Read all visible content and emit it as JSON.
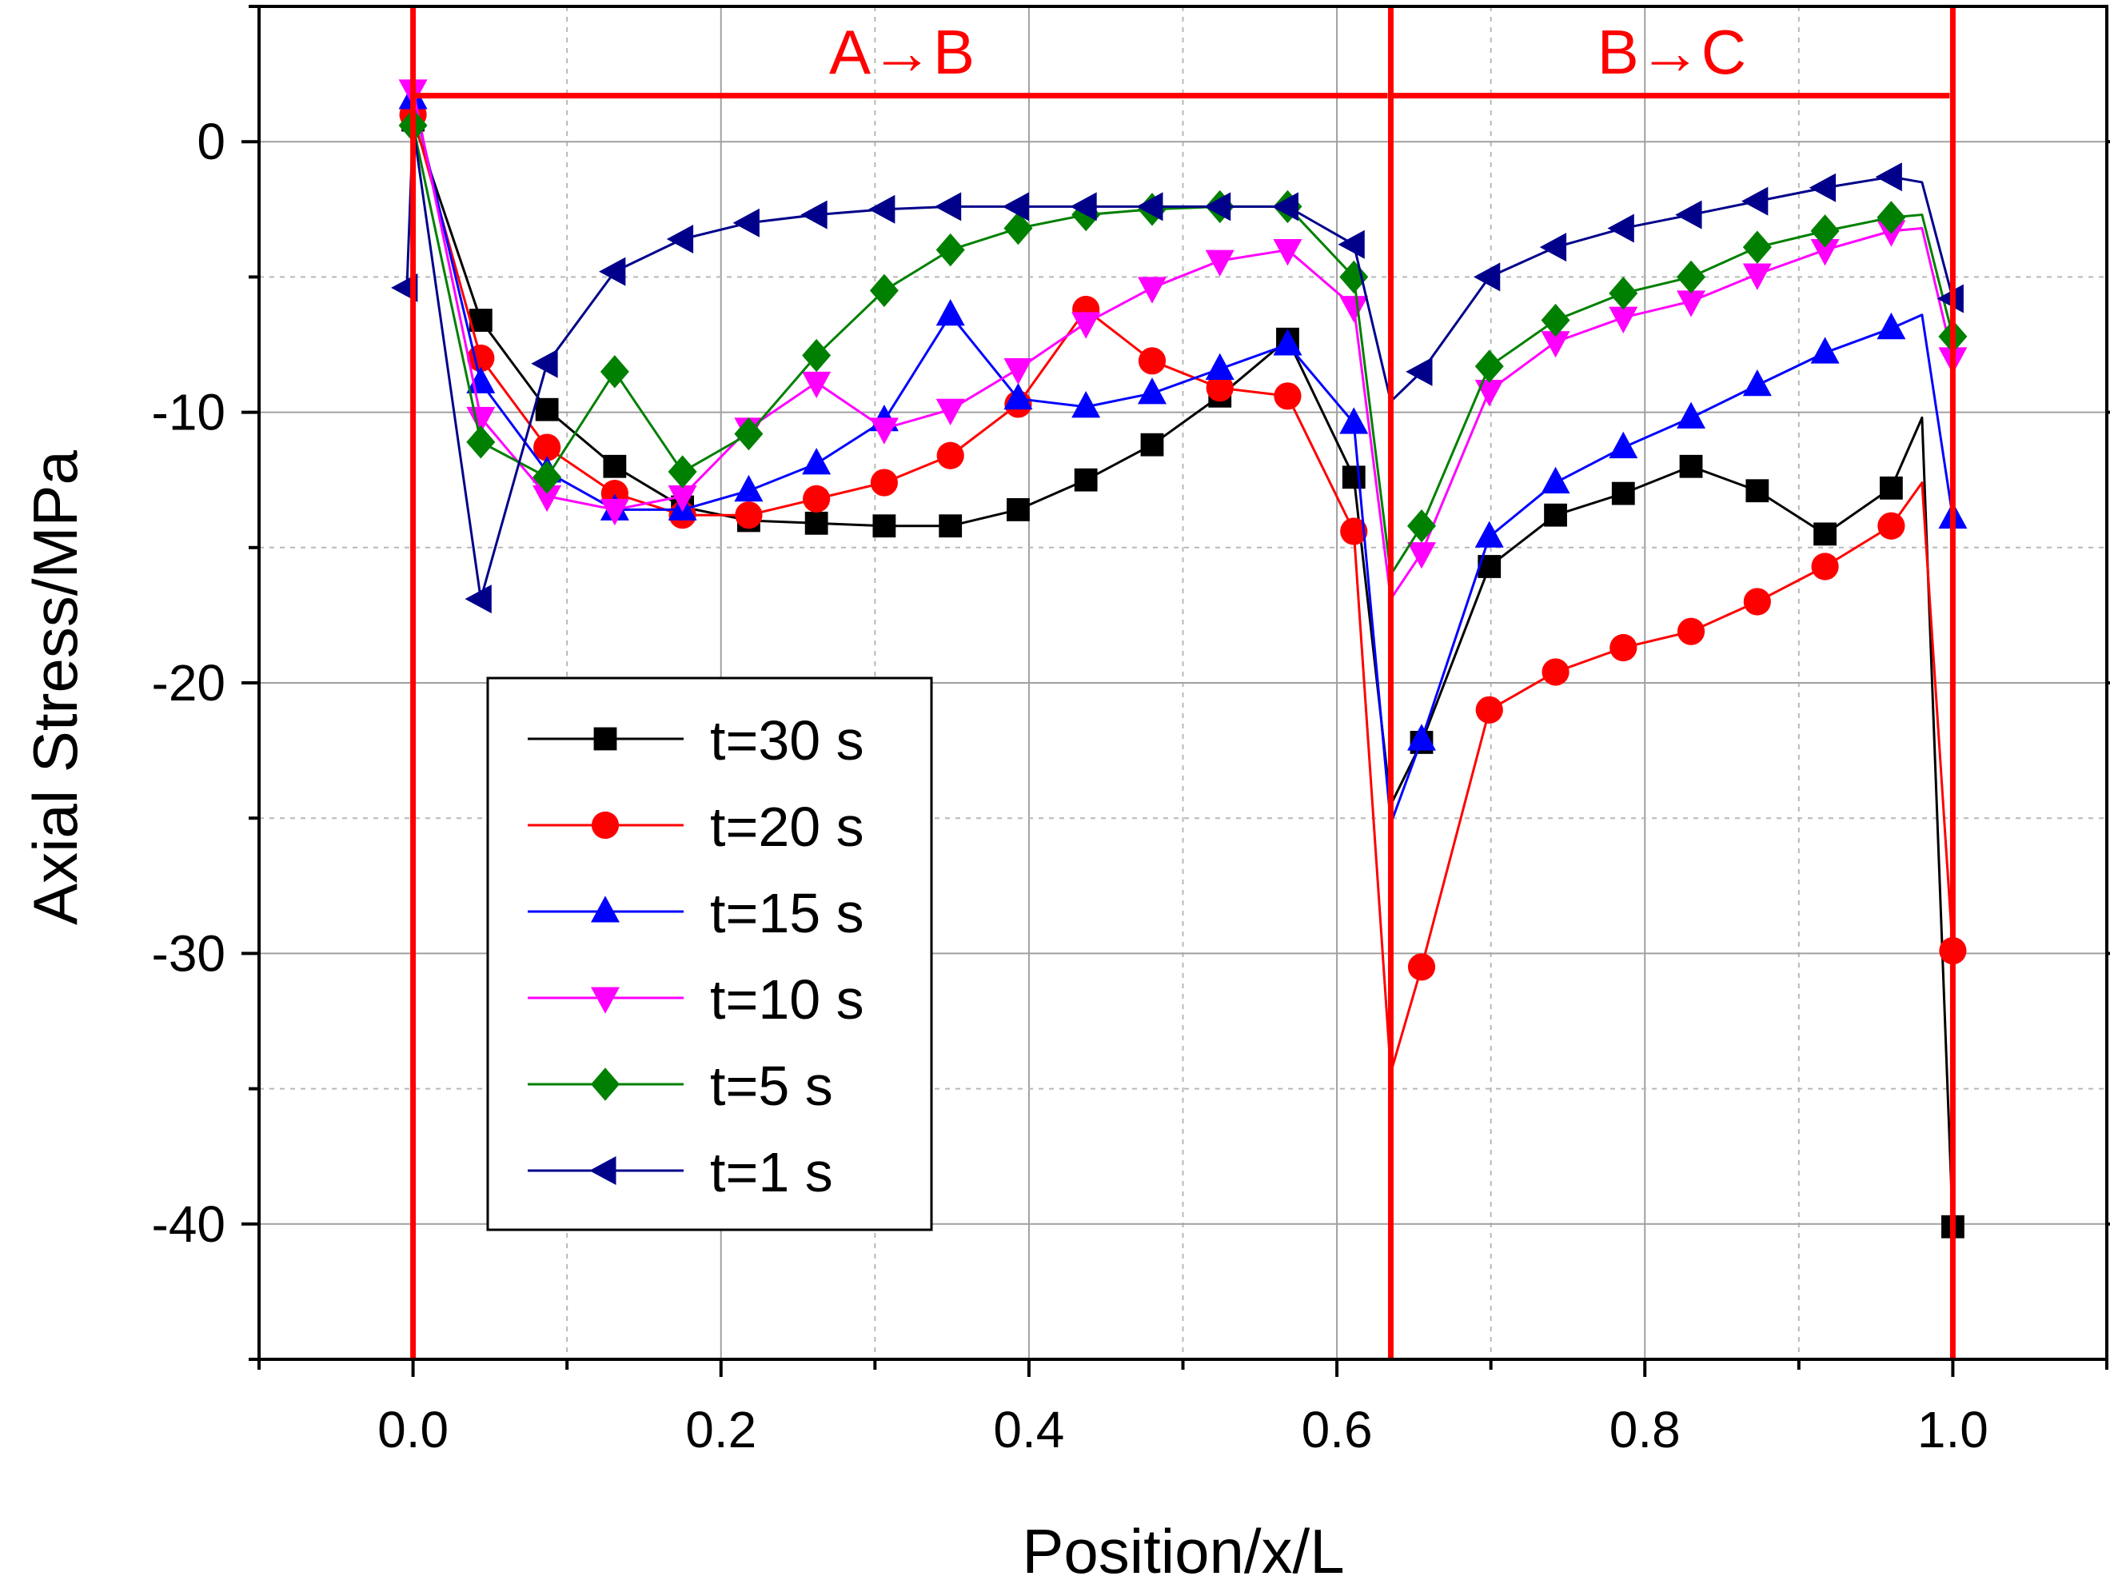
{
  "chart_data": {
    "type": "line",
    "xlabel": "Position/x/L",
    "ylabel": "Axial Stress/MPa",
    "xlim": [
      -0.1,
      1.1
    ],
    "ylim": [
      -45,
      5
    ],
    "xticks": [
      0.0,
      0.2,
      0.4,
      0.6,
      0.8,
      1.0
    ],
    "xtick_labels": [
      "0.0",
      "0.2",
      "0.4",
      "0.6",
      "0.8",
      "1.0"
    ],
    "yticks": [
      0,
      -10,
      -20,
      -30,
      -40
    ],
    "ytick_labels": [
      "0",
      "-10",
      "-20",
      "-30",
      "-40"
    ],
    "grid": true,
    "legend_position": "lower-left",
    "annotations": {
      "region_lines_x": [
        0.0,
        0.635,
        1.0
      ],
      "arrows": [
        {
          "label": "A→B",
          "x_start": 0.0,
          "x_end": 0.635,
          "y": 1.7
        },
        {
          "label": "B→C",
          "x_start": 0.635,
          "x_end": 1.0,
          "y": 1.7
        }
      ],
      "color": "#ff0000"
    },
    "series": [
      {
        "name": "t=30 s",
        "color": "#000000",
        "marker": "square",
        "line_x": [
          0.0,
          0.044,
          0.087,
          0.131,
          0.175,
          0.218,
          0.262,
          0.306,
          0.349,
          0.393,
          0.437,
          0.48,
          0.524,
          0.568,
          0.611,
          0.635,
          0.655,
          0.699,
          0.742,
          0.786,
          0.83,
          0.873,
          0.917,
          0.96,
          0.98,
          1.0
        ],
        "line_y": [
          0.8,
          -6.6,
          -9.9,
          -12.0,
          -13.5,
          -14.0,
          -14.1,
          -14.2,
          -14.2,
          -13.6,
          -12.5,
          -11.2,
          -9.4,
          -7.3,
          -12.4,
          -24.5,
          -22.2,
          -15.7,
          -13.8,
          -13.0,
          -12.0,
          -12.9,
          -14.5,
          -12.8,
          -10.2,
          -40.1
        ],
        "marker_x": [
          0.0,
          0.044,
          0.087,
          0.131,
          0.175,
          0.218,
          0.262,
          0.306,
          0.349,
          0.393,
          0.437,
          0.48,
          0.524,
          0.568,
          0.611,
          0.655,
          0.699,
          0.742,
          0.786,
          0.83,
          0.873,
          0.917,
          0.96,
          1.0
        ],
        "marker_y": [
          0.8,
          -6.6,
          -9.9,
          -12.0,
          -13.5,
          -14.0,
          -14.1,
          -14.2,
          -14.2,
          -13.6,
          -12.5,
          -11.2,
          -9.4,
          -7.3,
          -12.4,
          -22.2,
          -15.7,
          -13.8,
          -13.0,
          -12.0,
          -12.9,
          -14.5,
          -12.8,
          -40.1
        ]
      },
      {
        "name": "t=20 s",
        "color": "#ff0000",
        "marker": "circle",
        "line_x": [
          0.0,
          0.044,
          0.087,
          0.131,
          0.175,
          0.218,
          0.262,
          0.306,
          0.349,
          0.393,
          0.437,
          0.48,
          0.524,
          0.568,
          0.611,
          0.635,
          0.655,
          0.699,
          0.742,
          0.786,
          0.83,
          0.873,
          0.917,
          0.96,
          0.98,
          1.0
        ],
        "line_y": [
          1.0,
          -8.0,
          -11.3,
          -13.0,
          -13.8,
          -13.8,
          -13.2,
          -12.6,
          -11.6,
          -9.7,
          -6.2,
          -8.1,
          -9.1,
          -9.4,
          -14.4,
          -34.4,
          -30.5,
          -21.0,
          -19.6,
          -18.7,
          -18.1,
          -17.0,
          -15.7,
          -14.2,
          -12.6,
          -29.9
        ],
        "marker_x": [
          0.0,
          0.044,
          0.087,
          0.131,
          0.175,
          0.218,
          0.262,
          0.306,
          0.349,
          0.393,
          0.437,
          0.48,
          0.524,
          0.568,
          0.611,
          0.655,
          0.699,
          0.742,
          0.786,
          0.83,
          0.873,
          0.917,
          0.96,
          1.0
        ],
        "marker_y": [
          1.0,
          -8.0,
          -11.3,
          -13.0,
          -13.8,
          -13.8,
          -13.2,
          -12.6,
          -11.6,
          -9.7,
          -6.2,
          -8.1,
          -9.1,
          -9.4,
          -14.4,
          -30.5,
          -21.0,
          -19.6,
          -18.7,
          -18.1,
          -17.0,
          -15.7,
          -14.2,
          -29.9
        ]
      },
      {
        "name": "t=15 s",
        "color": "#0000ff",
        "marker": "triangle-up",
        "line_x": [
          0.0,
          0.044,
          0.087,
          0.131,
          0.175,
          0.218,
          0.262,
          0.306,
          0.349,
          0.393,
          0.437,
          0.48,
          0.524,
          0.568,
          0.611,
          0.635,
          0.655,
          0.699,
          0.742,
          0.786,
          0.83,
          0.873,
          0.917,
          0.96,
          0.98,
          1.0
        ],
        "line_y": [
          1.6,
          -8.9,
          -12.2,
          -13.6,
          -13.6,
          -12.9,
          -11.9,
          -10.3,
          -6.4,
          -9.5,
          -9.8,
          -9.3,
          -8.4,
          -7.5,
          -10.4,
          -25.2,
          -22.1,
          -14.6,
          -12.6,
          -11.3,
          -10.2,
          -9.0,
          -7.8,
          -6.9,
          -6.4,
          -13.9
        ],
        "marker_x": [
          0.0,
          0.044,
          0.087,
          0.131,
          0.175,
          0.218,
          0.262,
          0.306,
          0.349,
          0.393,
          0.437,
          0.48,
          0.524,
          0.568,
          0.611,
          0.655,
          0.699,
          0.742,
          0.786,
          0.83,
          0.873,
          0.917,
          0.96,
          1.0
        ],
        "marker_y": [
          1.6,
          -8.9,
          -12.2,
          -13.6,
          -13.6,
          -12.9,
          -11.9,
          -10.3,
          -6.4,
          -9.5,
          -9.8,
          -9.3,
          -8.4,
          -7.5,
          -10.4,
          -22.1,
          -14.6,
          -12.6,
          -11.3,
          -10.2,
          -9.0,
          -7.8,
          -6.9,
          -13.9
        ]
      },
      {
        "name": "t=10 s",
        "color": "#ff00ff",
        "marker": "triangle-down",
        "line_x": [
          0.0,
          0.044,
          0.087,
          0.131,
          0.175,
          0.218,
          0.262,
          0.306,
          0.349,
          0.393,
          0.437,
          0.48,
          0.524,
          0.568,
          0.611,
          0.635,
          0.655,
          0.699,
          0.742,
          0.786,
          0.83,
          0.873,
          0.917,
          0.96,
          0.98,
          1.0
        ],
        "line_y": [
          1.9,
          -10.2,
          -13.1,
          -13.6,
          -13.1,
          -10.6,
          -8.9,
          -10.6,
          -9.9,
          -8.4,
          -6.7,
          -5.4,
          -4.4,
          -4.0,
          -6.1,
          -16.9,
          -15.2,
          -9.2,
          -7.4,
          -6.5,
          -5.9,
          -4.9,
          -4.0,
          -3.3,
          -3.2,
          -8.0
        ],
        "marker_x": [
          0.0,
          0.044,
          0.087,
          0.131,
          0.175,
          0.218,
          0.262,
          0.306,
          0.349,
          0.393,
          0.437,
          0.48,
          0.524,
          0.568,
          0.611,
          0.655,
          0.699,
          0.742,
          0.786,
          0.83,
          0.873,
          0.917,
          0.96,
          1.0
        ],
        "marker_y": [
          1.9,
          -10.2,
          -13.1,
          -13.6,
          -13.1,
          -10.6,
          -8.9,
          -10.6,
          -9.9,
          -8.4,
          -6.7,
          -5.4,
          -4.4,
          -4.0,
          -6.1,
          -15.2,
          -9.2,
          -7.4,
          -6.5,
          -5.9,
          -4.9,
          -4.0,
          -3.3,
          -8.0
        ]
      },
      {
        "name": "t=5 s",
        "color": "#008000",
        "marker": "diamond",
        "line_x": [
          0.0,
          0.044,
          0.087,
          0.131,
          0.175,
          0.218,
          0.262,
          0.306,
          0.349,
          0.393,
          0.437,
          0.48,
          0.524,
          0.568,
          0.611,
          0.635,
          0.655,
          0.699,
          0.742,
          0.786,
          0.83,
          0.873,
          0.917,
          0.96,
          0.98,
          1.0
        ],
        "line_y": [
          0.6,
          -11.1,
          -12.4,
          -8.5,
          -12.2,
          -10.8,
          -7.9,
          -5.5,
          -4.0,
          -3.2,
          -2.7,
          -2.5,
          -2.4,
          -2.4,
          -5.0,
          -16.0,
          -14.2,
          -8.3,
          -6.6,
          -5.6,
          -5.0,
          -3.9,
          -3.3,
          -2.8,
          -2.7,
          -7.2
        ],
        "marker_x": [
          0.0,
          0.044,
          0.087,
          0.131,
          0.175,
          0.218,
          0.262,
          0.306,
          0.349,
          0.393,
          0.437,
          0.48,
          0.524,
          0.568,
          0.611,
          0.655,
          0.699,
          0.742,
          0.786,
          0.83,
          0.873,
          0.917,
          0.96,
          1.0
        ],
        "marker_y": [
          0.6,
          -11.1,
          -12.4,
          -8.5,
          -12.2,
          -10.8,
          -7.9,
          -5.5,
          -4.0,
          -3.2,
          -2.7,
          -2.5,
          -2.4,
          -2.4,
          -5.0,
          -14.2,
          -8.3,
          -6.6,
          -5.6,
          -5.0,
          -3.9,
          -3.3,
          -2.8,
          -7.2
        ]
      },
      {
        "name": "t=1 s",
        "color": "#00008b",
        "marker": "triangle-left",
        "line_x": [
          -0.004,
          0.0,
          0.044,
          0.087,
          0.131,
          0.175,
          0.218,
          0.262,
          0.306,
          0.349,
          0.393,
          0.437,
          0.48,
          0.524,
          0.568,
          0.611,
          0.635,
          0.655,
          0.699,
          0.742,
          0.786,
          0.83,
          0.873,
          0.917,
          0.96,
          0.98,
          1.0
        ],
        "line_y": [
          -5.4,
          0.6,
          -16.9,
          -8.2,
          -4.8,
          -3.6,
          -3.0,
          -2.7,
          -2.5,
          -2.4,
          -2.4,
          -2.4,
          -2.4,
          -2.4,
          -2.4,
          -3.8,
          -9.6,
          -8.5,
          -5.0,
          -3.9,
          -3.2,
          -2.7,
          -2.2,
          -1.7,
          -1.3,
          -1.5,
          -5.8
        ],
        "marker_x": [
          -0.004,
          0.044,
          0.087,
          0.131,
          0.175,
          0.218,
          0.262,
          0.306,
          0.349,
          0.393,
          0.437,
          0.48,
          0.524,
          0.568,
          0.611,
          0.655,
          0.699,
          0.742,
          0.786,
          0.83,
          0.873,
          0.917,
          0.96,
          1.0
        ],
        "marker_y": [
          -5.4,
          -16.9,
          -8.2,
          -4.8,
          -3.6,
          -3.0,
          -2.7,
          -2.5,
          -2.4,
          -2.4,
          -2.4,
          -2.4,
          -2.4,
          -2.4,
          -3.8,
          -8.5,
          -5.0,
          -3.9,
          -3.2,
          -2.7,
          -2.2,
          -1.7,
          -1.3,
          -5.8
        ]
      }
    ]
  }
}
